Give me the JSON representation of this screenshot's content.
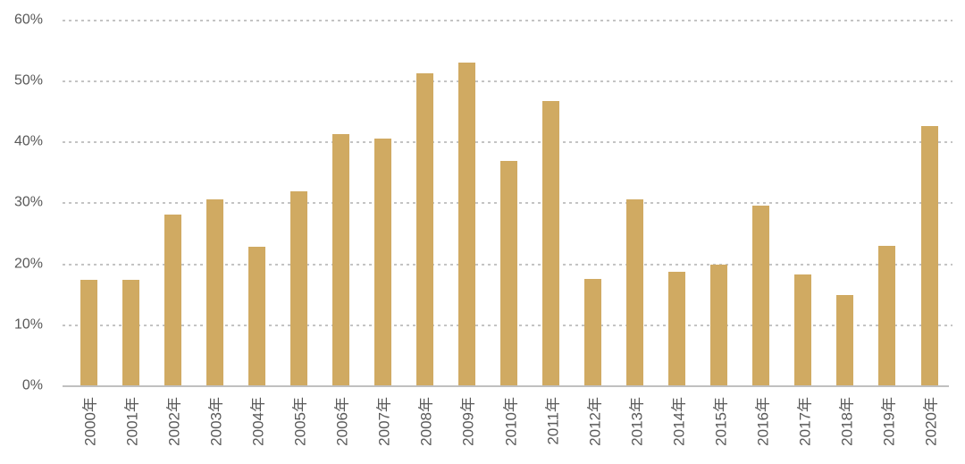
{
  "chart_data": {
    "type": "bar",
    "title": "",
    "xlabel": "",
    "ylabel": "",
    "categories": [
      "2000年",
      "2001年",
      "2002年",
      "2003年",
      "2004年",
      "2005年",
      "2006年",
      "2007年",
      "2008年",
      "2009年",
      "2010年",
      "2011年",
      "2012年",
      "2013年",
      "2014年",
      "2015年",
      "2016年",
      "2017年",
      "2018年",
      "2019年",
      "2020年"
    ],
    "values": [
      17.5,
      17.4,
      28.2,
      30.6,
      22.9,
      31.9,
      41.4,
      40.6,
      51.3,
      53.1,
      36.9,
      46.8,
      17.6,
      30.6,
      18.8,
      19.9,
      29.6,
      18.3,
      15.0,
      23.0,
      42.7
    ],
    "y_tick_labels": [
      "60%",
      "50%",
      "40%",
      "30%",
      "20%",
      "10%",
      "0%"
    ],
    "y_tick_values": [
      60,
      50,
      40,
      30,
      20,
      10,
      0
    ],
    "ylim": [
      0,
      60
    ],
    "grid": "horizontal-dashed",
    "legend_position": "none",
    "colors": {
      "bar_fill": "#D0AA62",
      "axis_text": "#595959",
      "gridline": "#C4C4C4",
      "axis_line": "#C0C0C0"
    }
  }
}
